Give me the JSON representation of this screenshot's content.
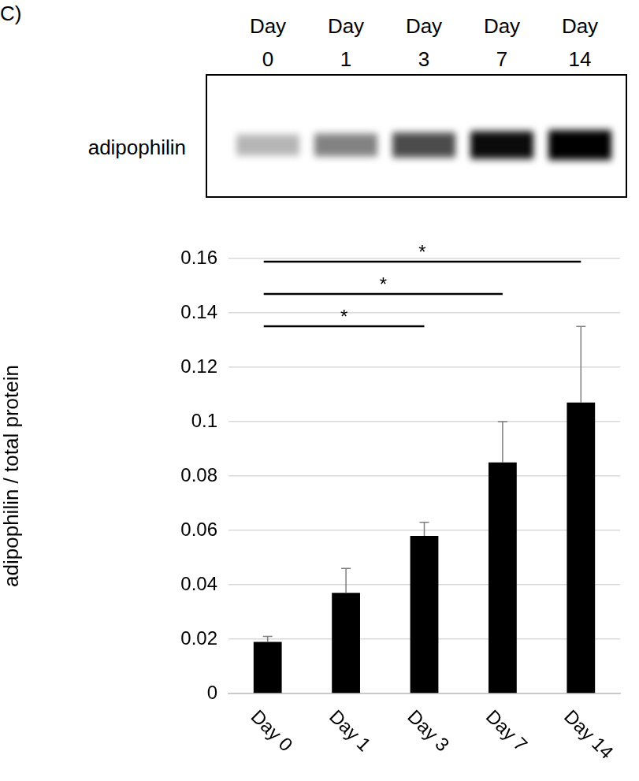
{
  "panel_label": "C)",
  "blot": {
    "label": "adipophilin",
    "lanes": [
      "Day 0",
      "Day 1",
      "Day 3",
      "Day 7",
      "Day 14"
    ]
  },
  "chart_data": {
    "type": "bar",
    "y_label": "adipophilin / total protein",
    "categories": [
      "Day 0",
      "Day 1",
      "Day 3",
      "Day 7",
      "Day 14"
    ],
    "values": [
      0.019,
      0.037,
      0.058,
      0.085,
      0.107
    ],
    "error": [
      0.002,
      0.009,
      0.005,
      0.015,
      0.028
    ],
    "color": "#000000",
    "ylim": [
      0,
      0.16
    ],
    "yticks": [
      0,
      0.02,
      0.04,
      0.06,
      0.08,
      0.1,
      0.12,
      0.14,
      0.16
    ],
    "grid": true,
    "significance": [
      {
        "from": "Day 0",
        "to": "Day 3",
        "label": "*"
      },
      {
        "from": "Day 0",
        "to": "Day 7",
        "label": "*"
      },
      {
        "from": "Day 0",
        "to": "Day 14",
        "label": "*"
      }
    ]
  }
}
